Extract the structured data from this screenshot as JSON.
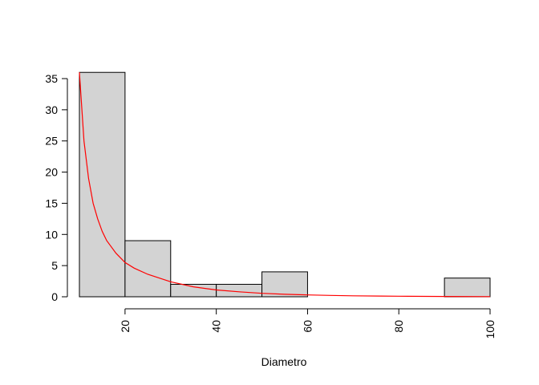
{
  "chart_data": {
    "type": "bar",
    "title": "",
    "xlabel": "Diametro",
    "ylabel": "",
    "xlim": [
      10,
      100
    ],
    "ylim": [
      0,
      35
    ],
    "bins": [
      {
        "start": 10,
        "end": 20,
        "count": 36
      },
      {
        "start": 20,
        "end": 30,
        "count": 9
      },
      {
        "start": 30,
        "end": 40,
        "count": 2
      },
      {
        "start": 40,
        "end": 50,
        "count": 2
      },
      {
        "start": 50,
        "end": 60,
        "count": 4
      },
      {
        "start": 60,
        "end": 70,
        "count": 0
      },
      {
        "start": 70,
        "end": 80,
        "count": 0
      },
      {
        "start": 80,
        "end": 90,
        "count": 0
      },
      {
        "start": 90,
        "end": 100,
        "count": 3
      }
    ],
    "x_ticks": [
      20,
      40,
      60,
      80,
      100
    ],
    "y_ticks": [
      0,
      5,
      10,
      15,
      20,
      25,
      30,
      35
    ],
    "curve": {
      "x": [
        10,
        11,
        12,
        13,
        14,
        15,
        16,
        17,
        18,
        20,
        22,
        25,
        30,
        35,
        40,
        45,
        50,
        55,
        60,
        65,
        70,
        76,
        80,
        90,
        100
      ],
      "y": [
        36,
        25,
        19,
        15,
        12.5,
        10.5,
        9,
        8,
        7,
        5.5,
        4.6,
        3.6,
        2.4,
        1.6,
        1.1,
        0.8,
        0.55,
        0.4,
        0.3,
        0.22,
        0.16,
        0.12,
        0.09,
        0.05,
        0.03
      ]
    },
    "grid": false,
    "colors": {
      "bar_fill": "#d3d3d3",
      "bar_stroke": "#000000",
      "curve": "#ff0000"
    }
  }
}
